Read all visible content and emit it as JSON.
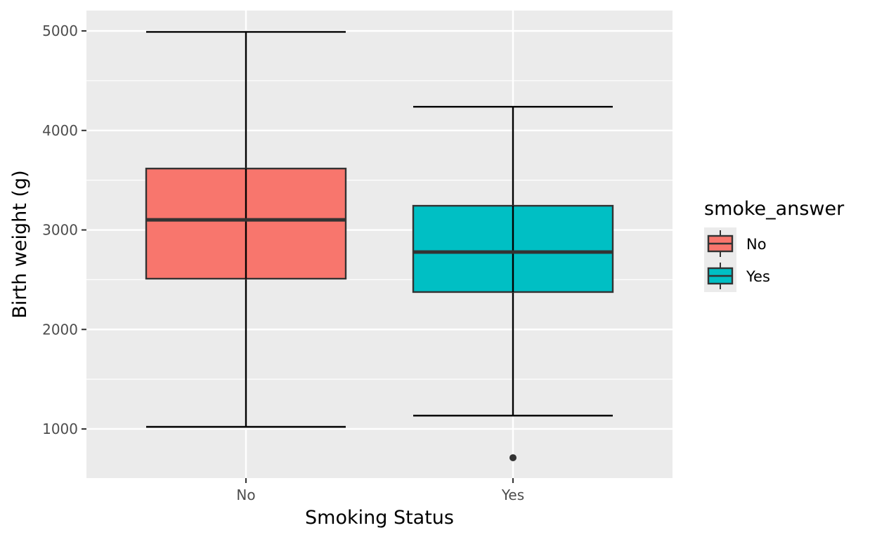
{
  "chart_data": {
    "type": "boxplot",
    "title": "",
    "xlabel": "Smoking Status",
    "ylabel": "Birth weight (g)",
    "ylim": [
      506,
      5205
    ],
    "yticks": [
      1000,
      2000,
      3000,
      4000,
      5000
    ],
    "grid": true,
    "categories": [
      "No",
      "Yes"
    ],
    "legend": {
      "title": "smoke_answer",
      "entries": [
        "No",
        "Yes"
      ],
      "placement": "right"
    },
    "series": [
      {
        "name": "No",
        "color": "#F8766D",
        "whisker_low": 1021,
        "q1": 2510,
        "median": 3102,
        "q3": 3617,
        "whisker_high": 4990,
        "outliers": []
      },
      {
        "name": "Yes",
        "color": "#00BFC4",
        "whisker_low": 1134,
        "q1": 2376,
        "median": 2778,
        "q3": 3243,
        "whisker_high": 4238,
        "outliers": [
          711
        ]
      }
    ]
  }
}
